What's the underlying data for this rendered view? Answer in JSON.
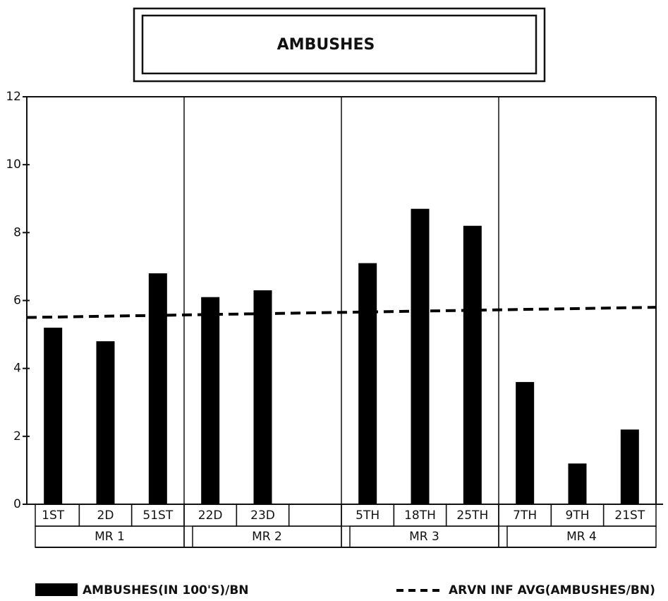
{
  "chart_data": {
    "type": "bar",
    "title": "AMBUSHES",
    "categories": [
      "1ST",
      "2D",
      "51ST",
      "22D",
      "23D",
      null,
      "5TH",
      "18TH",
      "25TH",
      "7TH",
      "9TH",
      "21ST"
    ],
    "groups": [
      "MR 1",
      "MR 2",
      "MR 3",
      "MR 4"
    ],
    "series": [
      {
        "name": "AMBUSHES(IN 100'S)/BN",
        "color": "#000000",
        "values": [
          5.2,
          4.8,
          6.8,
          6.1,
          6.3,
          null,
          7.1,
          8.7,
          8.2,
          3.6,
          1.2,
          2.2
        ]
      }
    ],
    "avg_line": {
      "name": "ARVN INF AVG(AMBUSHES/BN)",
      "color": "#000000",
      "values": [
        5.5,
        5.8
      ]
    },
    "ylim": [
      0,
      12
    ],
    "yticks": [
      0,
      2,
      4,
      6,
      8,
      10,
      12
    ]
  }
}
